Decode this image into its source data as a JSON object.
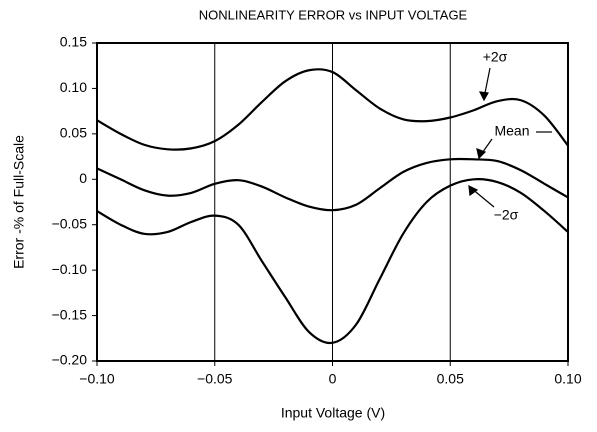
{
  "chart_data": {
    "type": "line",
    "title": "NONLINEARITY ERROR vs INPUT VOLTAGE",
    "xlabel": "Input Voltage (V)",
    "ylabel": "Error -% of Full-Scale",
    "x": [
      -0.1,
      -0.09,
      -0.08,
      -0.07,
      -0.06,
      -0.05,
      -0.04,
      -0.03,
      -0.02,
      -0.01,
      0,
      0.01,
      0.02,
      0.03,
      0.04,
      0.05,
      0.06,
      0.07,
      0.08,
      0.09,
      0.1
    ],
    "series": [
      {
        "name": "+2σ",
        "color": "#000000",
        "values": [
          0.065,
          0.05,
          0.038,
          0.033,
          0.034,
          0.042,
          0.06,
          0.085,
          0.108,
          0.12,
          0.118,
          0.098,
          0.078,
          0.066,
          0.064,
          0.068,
          0.076,
          0.086,
          0.087,
          0.07,
          0.037
        ]
      },
      {
        "name": "Mean",
        "color": "#000000",
        "values": [
          0.012,
          0.0,
          -0.012,
          -0.018,
          -0.015,
          -0.005,
          -0.001,
          -0.008,
          -0.02,
          -0.03,
          -0.034,
          -0.028,
          -0.01,
          0.008,
          0.018,
          0.022,
          0.022,
          0.02,
          0.01,
          -0.005,
          -0.02
        ]
      },
      {
        "name": "−2σ",
        "color": "#000000",
        "values": [
          -0.035,
          -0.05,
          -0.06,
          -0.058,
          -0.047,
          -0.04,
          -0.05,
          -0.09,
          -0.13,
          -0.168,
          -0.18,
          -0.16,
          -0.11,
          -0.06,
          -0.025,
          -0.007,
          0.0,
          -0.003,
          -0.015,
          -0.035,
          -0.058
        ]
      }
    ],
    "xlim": [
      -0.1,
      0.1
    ],
    "xticks": [
      {
        "value": -0.1,
        "label": "−0.10"
      },
      {
        "value": -0.05,
        "label": "−0.05"
      },
      0,
      0.05,
      {
        "value": 0.1,
        "label": "0.10"
      }
    ],
    "ylim": [
      -0.2,
      0.15
    ],
    "yticks": [
      {
        "value": -0.2,
        "label": "−0.20"
      },
      {
        "value": -0.15,
        "label": "−0.15"
      },
      {
        "value": -0.1,
        "label": "−0.10"
      },
      {
        "value": -0.05,
        "label": "−0.05"
      },
      0,
      0.05,
      {
        "value": 0.1,
        "label": "0.10"
      },
      0.15
    ],
    "grid": "x"
  }
}
